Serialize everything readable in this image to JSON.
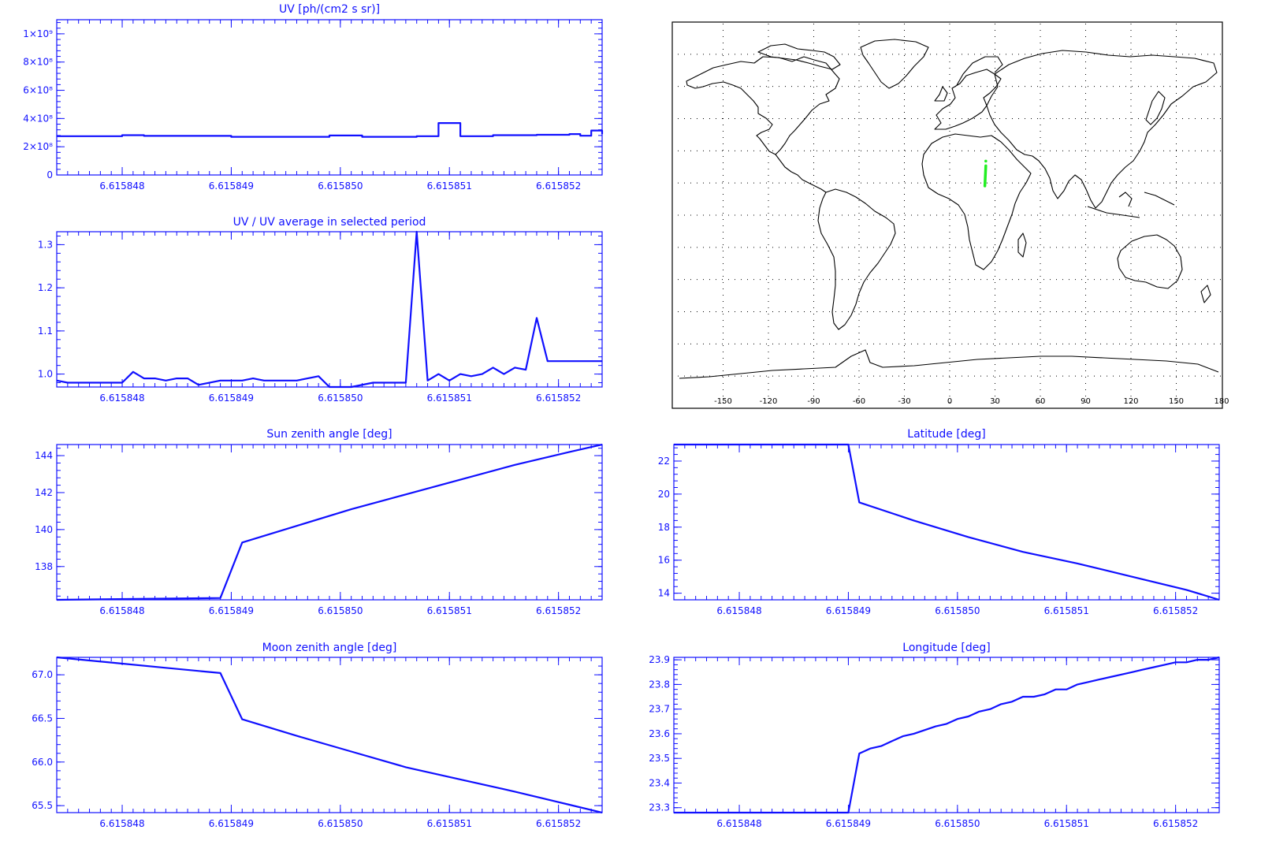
{
  "colors": {
    "plot": "#1010ff",
    "map_coast": "#000000",
    "map_track": "#22ee22",
    "map_grid": "#000000"
  },
  "x_ticks": [
    "6.615848",
    "6.615849",
    "6.615850",
    "6.615851",
    "6.615852"
  ],
  "x_tick_values": [
    6.615848,
    6.615849,
    6.61585,
    6.615851,
    6.615852
  ],
  "x_range": [
    6.6158474,
    6.6158524
  ],
  "chart_data": [
    {
      "id": "uv",
      "type": "line",
      "step": true,
      "title": "UV [ph/(cm2 s sr)]",
      "xlim": [
        6.6158474,
        6.6158524
      ],
      "ylim": [
        0,
        1100000000
      ],
      "yticks": [
        0,
        200000000,
        400000000,
        600000000,
        800000000,
        1000000000
      ],
      "ytick_labels": [
        "0",
        "2×10⁸",
        "4×10⁸",
        "6×10⁸",
        "8×10⁸",
        "1×10⁹"
      ],
      "x": [
        6.6158474,
        6.615848,
        6.6158482,
        6.615849,
        6.6158499,
        6.6158502,
        6.6158507,
        6.6158508,
        6.6158509,
        6.6158511,
        6.6158514,
        6.6158518,
        6.6158521,
        6.6158522,
        6.6158523,
        6.6158524
      ],
      "y": [
        275000000,
        282000000,
        277000000,
        270000000,
        280000000,
        270000000,
        275000000,
        275000000,
        368000000,
        275000000,
        282000000,
        285000000,
        290000000,
        278000000,
        315000000,
        290000000
      ]
    },
    {
      "id": "uv_ratio",
      "type": "line",
      "title": "UV / UV average in selected period",
      "xlim": [
        6.6158474,
        6.6158524
      ],
      "ylim": [
        0.97,
        1.33
      ],
      "yticks": [
        1.0,
        1.1,
        1.2,
        1.3
      ],
      "ytick_labels": [
        "1.0",
        "1.1",
        "1.2",
        "1.3"
      ],
      "x": [
        6.6158474,
        6.6158475,
        6.6158477,
        6.615848,
        6.6158481,
        6.6158482,
        6.6158483,
        6.6158484,
        6.6158485,
        6.6158486,
        6.6158487,
        6.6158489,
        6.615849,
        6.6158491,
        6.6158492,
        6.6158493,
        6.6158494,
        6.6158495,
        6.6158496,
        6.6158498,
        6.6158499,
        6.61585,
        6.6158501,
        6.6158503,
        6.6158504,
        6.6158505,
        6.6158506,
        6.6158507,
        6.6158508,
        6.6158509,
        6.615851,
        6.6158511,
        6.6158512,
        6.6158513,
        6.6158514,
        6.6158515,
        6.6158516,
        6.6158517,
        6.6158518,
        6.6158519,
        6.615852,
        6.6158521,
        6.6158522,
        6.6158523,
        6.6158524
      ],
      "y": [
        0.985,
        0.98,
        0.98,
        0.98,
        1.005,
        0.99,
        0.99,
        0.985,
        0.99,
        0.99,
        0.975,
        0.985,
        0.985,
        0.985,
        0.99,
        0.985,
        0.985,
        0.985,
        0.985,
        0.995,
        0.97,
        0.97,
        0.97,
        0.98,
        0.98,
        0.98,
        0.98,
        1.33,
        0.985,
        1.0,
        0.985,
        1.0,
        0.995,
        1.0,
        1.015,
        1.0,
        1.015,
        1.01,
        1.13,
        1.03,
        1.03,
        1.03,
        1.03,
        1.03,
        1.03
      ]
    },
    {
      "id": "sun_zenith",
      "type": "line",
      "title": "Sun zenith angle [deg]",
      "xlim": [
        6.6158474,
        6.6158524
      ],
      "ylim": [
        136.2,
        144.6
      ],
      "yticks": [
        138,
        140,
        142,
        144
      ],
      "ytick_labels": [
        "138",
        "140",
        "142",
        "144"
      ],
      "x": [
        6.6158474,
        6.6158489,
        6.6158491,
        6.6158496,
        6.6158501,
        6.6158506,
        6.6158511,
        6.6158516,
        6.6158521,
        6.6158524
      ],
      "y": [
        136.2,
        136.3,
        139.3,
        140.2,
        141.1,
        141.9,
        142.7,
        143.5,
        144.2,
        144.6
      ]
    },
    {
      "id": "moon_zenith",
      "type": "line",
      "title": "Moon zenith angle [deg]",
      "xlim": [
        6.6158474,
        6.6158524
      ],
      "ylim": [
        65.42,
        67.2
      ],
      "yticks": [
        65.5,
        66.0,
        66.5,
        67.0
      ],
      "ytick_labels": [
        "65.5",
        "66.0",
        "66.5",
        "67.0"
      ],
      "x": [
        6.6158474,
        6.6158479,
        6.6158484,
        6.6158489,
        6.6158491,
        6.6158496,
        6.6158501,
        6.6158506,
        6.6158511,
        6.6158516,
        6.6158521,
        6.6158524
      ],
      "y": [
        67.2,
        67.14,
        67.08,
        67.02,
        66.49,
        66.3,
        66.12,
        65.94,
        65.8,
        65.66,
        65.51,
        65.42
      ]
    },
    {
      "id": "latitude",
      "type": "line",
      "title": "Latitude [deg]",
      "xlim": [
        6.6158474,
        6.6158524
      ],
      "ylim": [
        13.6,
        23.0
      ],
      "yticks": [
        14,
        16,
        18,
        20,
        22
      ],
      "ytick_labels": [
        "14",
        "16",
        "18",
        "20",
        "22"
      ],
      "x": [
        6.6158474,
        6.615849,
        6.6158491,
        6.6158496,
        6.6158501,
        6.6158506,
        6.6158511,
        6.6158516,
        6.6158521,
        6.6158524
      ],
      "y": [
        23.0,
        23.0,
        19.5,
        18.4,
        17.4,
        16.5,
        15.8,
        15.0,
        14.2,
        13.6
      ]
    },
    {
      "id": "longitude",
      "type": "line",
      "title": "Longitude [deg]",
      "xlim": [
        6.6158474,
        6.6158524
      ],
      "ylim": [
        23.28,
        23.91
      ],
      "yticks": [
        23.3,
        23.4,
        23.5,
        23.6,
        23.7,
        23.8,
        23.9
      ],
      "ytick_labels": [
        "23.3",
        "23.4",
        "23.5",
        "23.6",
        "23.7",
        "23.8",
        "23.9"
      ],
      "x": [
        6.6158474,
        6.615849,
        6.6158491,
        6.6158492,
        6.6158493,
        6.6158494,
        6.6158495,
        6.6158496,
        6.6158498,
        6.6158499,
        6.61585,
        6.6158501,
        6.6158502,
        6.6158503,
        6.6158504,
        6.6158505,
        6.6158506,
        6.6158507,
        6.6158508,
        6.6158509,
        6.615851,
        6.6158511,
        6.6158512,
        6.6158513,
        6.6158514,
        6.6158515,
        6.6158516,
        6.6158517,
        6.6158518,
        6.6158519,
        6.615852,
        6.6158521,
        6.6158522,
        6.6158523,
        6.6158524
      ],
      "y": [
        23.28,
        23.28,
        23.52,
        23.54,
        23.55,
        23.57,
        23.59,
        23.6,
        23.63,
        23.64,
        23.66,
        23.67,
        23.69,
        23.7,
        23.72,
        23.73,
        23.75,
        23.75,
        23.76,
        23.78,
        23.78,
        23.8,
        23.81,
        23.82,
        23.83,
        23.84,
        23.85,
        23.86,
        23.87,
        23.88,
        23.89,
        23.89,
        23.9,
        23.9,
        23.91
      ]
    }
  ],
  "map": {
    "lon_ticks": [
      "-150",
      "-120",
      "-90",
      "-60",
      "-30",
      "0",
      "30",
      "60",
      "90",
      "120",
      "150",
      "180"
    ],
    "lon_tick_values": [
      -150,
      -120,
      -90,
      -60,
      -30,
      0,
      30,
      60,
      90,
      120,
      150,
      180
    ],
    "lat_grid_values": [
      75,
      60,
      45,
      30,
      15,
      0,
      -15,
      -30,
      -45,
      -60,
      -75
    ],
    "track": {
      "lon": [
        23.28,
        23.91
      ],
      "lat": [
        13.6,
        23.0
      ]
    }
  }
}
